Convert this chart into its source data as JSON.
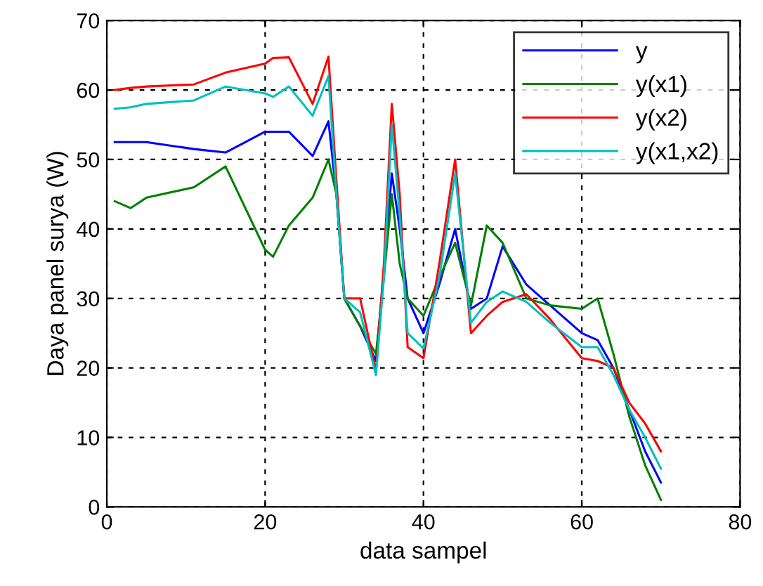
{
  "chart_data": {
    "type": "line",
    "xlabel": "data sampel",
    "ylabel": "Daya panel surya (W)",
    "x": [
      1,
      3,
      5,
      11,
      15,
      20,
      21,
      23,
      26,
      28,
      29,
      30,
      32,
      34,
      35,
      36,
      37,
      38,
      40,
      42,
      44,
      46,
      48,
      50,
      53,
      56,
      60,
      62,
      64,
      66,
      68,
      70
    ],
    "series": [
      {
        "name": "y",
        "color": "#0000ff",
        "values": [
          52.5,
          52.5,
          52.5,
          51.5,
          51,
          54,
          54,
          54,
          50.5,
          55.5,
          45,
          30,
          26,
          21,
          34,
          48,
          40,
          30,
          25,
          32,
          40,
          28.5,
          30,
          37.5,
          32,
          29,
          25,
          24,
          20,
          14,
          8,
          3.5
        ]
      },
      {
        "name": "y(x1)",
        "color": "#008000",
        "values": [
          44,
          43,
          44.5,
          46,
          49,
          37,
          36,
          40.5,
          44.5,
          50,
          45,
          30,
          26,
          22,
          33,
          45,
          35,
          30,
          27.5,
          33,
          38,
          29,
          40.5,
          38,
          30,
          29,
          28.5,
          30,
          22,
          13,
          6,
          1
        ]
      },
      {
        "name": "y(x2)",
        "color": "#ff0000",
        "values": [
          60,
          60.3,
          60.5,
          60.8,
          62.5,
          63.8,
          64.6,
          64.7,
          58,
          64.8,
          47,
          30,
          30,
          19.5,
          35,
          58,
          45,
          23,
          21.4,
          35,
          50,
          25,
          27.5,
          29.5,
          30.6,
          27,
          21.4,
          21,
          20,
          15,
          12,
          8
        ]
      },
      {
        "name": "y(x1,x2)",
        "color": "#00bfbf",
        "values": [
          57.3,
          57.5,
          58,
          58.5,
          60.5,
          59.5,
          59,
          60.5,
          56.3,
          62,
          45,
          30,
          28,
          19,
          33,
          55,
          42,
          25,
          22.8,
          33,
          48,
          26.5,
          29.5,
          31,
          29.5,
          26.5,
          23,
          23,
          19,
          14,
          10,
          5.5
        ]
      }
    ],
    "xlim": [
      0,
      80
    ],
    "xticks": [
      0,
      20,
      40,
      60,
      80
    ],
    "ylim": [
      0,
      70
    ],
    "yticks": [
      0,
      10,
      20,
      30,
      40,
      50,
      60,
      70
    ],
    "grid": true,
    "legend": "top right",
    "marker": "none",
    "line_style": "solid"
  }
}
